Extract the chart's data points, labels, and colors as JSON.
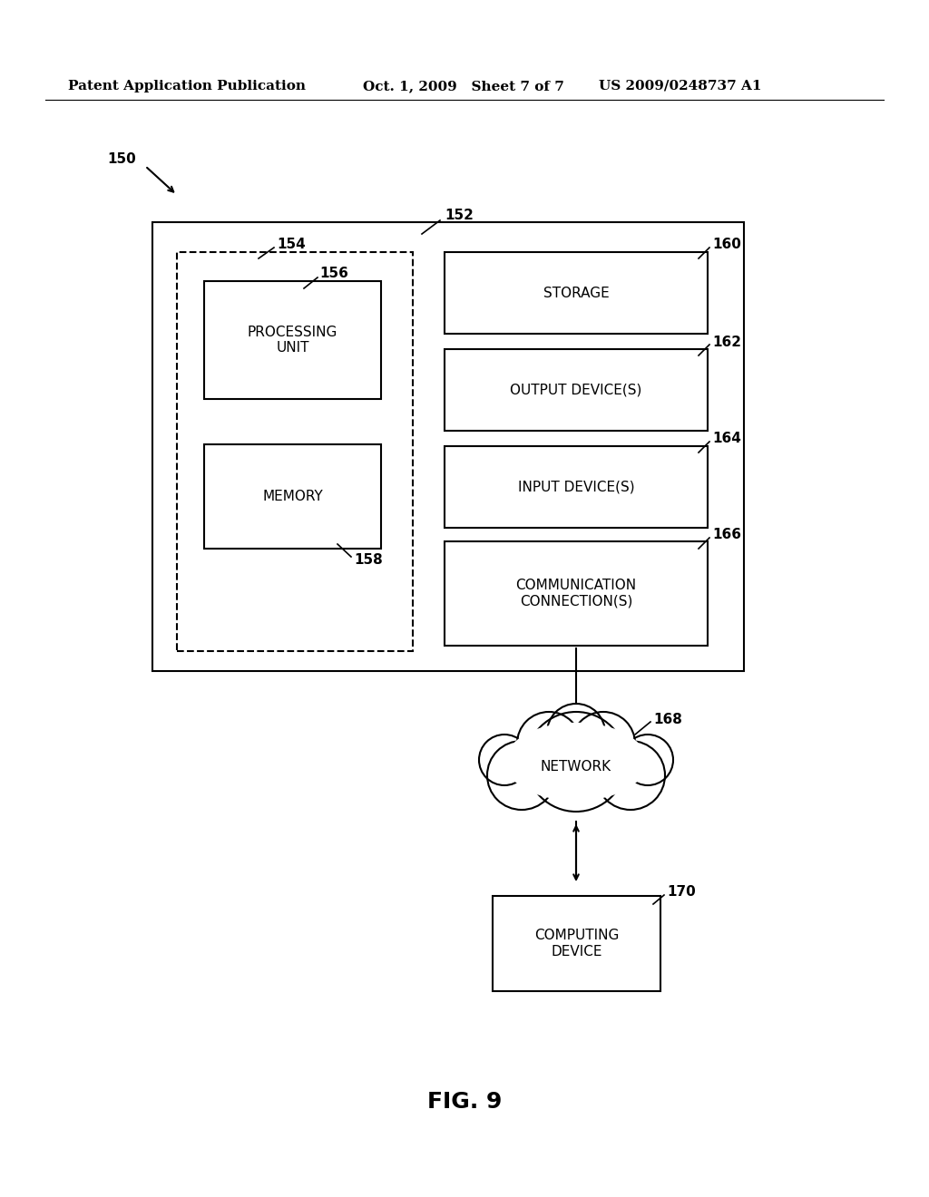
{
  "bg_color": "#ffffff",
  "text_color": "#000000",
  "header_left": "Patent Application Publication",
  "header_mid": "Oct. 1, 2009   Sheet 7 of 7",
  "header_right": "US 2009/0248737 A1",
  "fig_label": "FIG. 9",
  "label_150": "150",
  "label_152": "152",
  "label_154": "154",
  "label_156": "156",
  "label_158": "158",
  "label_160": "160",
  "label_162": "162",
  "label_164": "164",
  "label_166": "166",
  "label_168": "168",
  "label_170": "170",
  "box_processing_unit": "PROCESSING\nUNIT",
  "box_memory": "MEMORY",
  "box_storage": "STORAGE",
  "box_output_device": "OUTPUT DEVICE(S)",
  "box_input_device": "INPUT DEVICE(S)",
  "box_communication": "COMMUNICATION\nCONNECTION(S)",
  "box_network": "NETWORK",
  "box_computing_device": "COMPUTING\nDEVICE"
}
